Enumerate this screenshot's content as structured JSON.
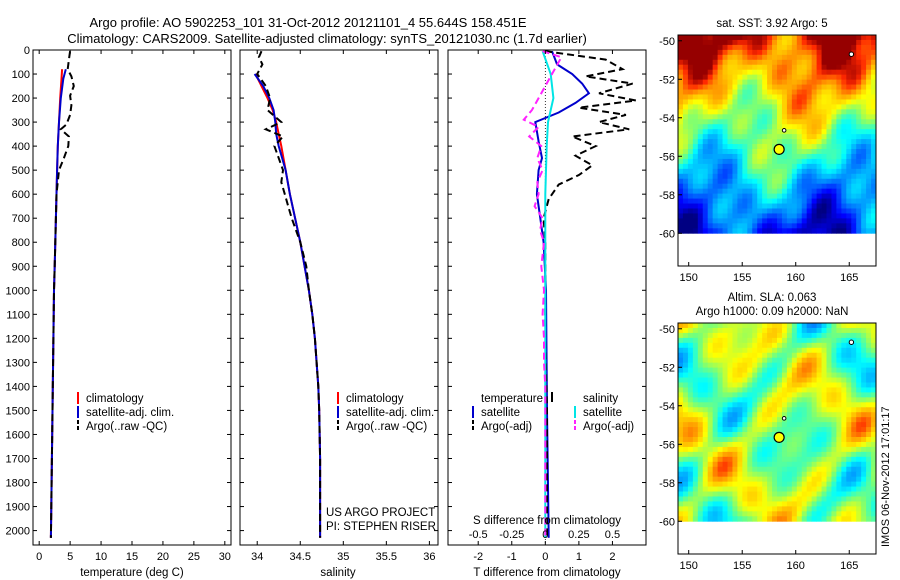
{
  "header": {
    "title_line1": "Argo profile: AO 5902253_101 31-Oct-2012 20121101_4 55.644S 158.451E",
    "title_line2": "Climatology: CARS2009. Satellite-adjusted climatology: synTS_20121030.nc (1.7d earlier)"
  },
  "colors": {
    "climatology": "#ff0000",
    "satellite": "#0000cc",
    "argo": "#000000",
    "temp_sat": "#00e5e5",
    "argo_adj_s": "#ff22ff"
  },
  "watermark": "IMOS 06-Nov-2012 17:01:17",
  "chart_data": [
    {
      "type": "line",
      "xlabel": "temperature (deg C)",
      "ylabel": "",
      "xlim": [
        -1,
        31
      ],
      "ylim": [
        2060,
        0
      ],
      "xticks": [
        0,
        5,
        10,
        15,
        20,
        25,
        30
      ],
      "yticks": [
        0,
        100,
        200,
        300,
        400,
        500,
        600,
        700,
        800,
        900,
        1000,
        1100,
        1200,
        1300,
        1400,
        1500,
        1600,
        1700,
        1800,
        1900,
        2000
      ],
      "legend": [
        "climatology",
        "satellite-adj. clim.",
        "Argo(..raw -QC)"
      ],
      "series": [
        {
          "name": "climatology",
          "color": "#ff0000",
          "dash": "",
          "depth": [
            80,
            120,
            200,
            300,
            400,
            500,
            600,
            700,
            800,
            900,
            1000,
            1200,
            1400,
            1600,
            1800,
            2030
          ],
          "values": [
            3.7,
            3.6,
            3.4,
            3.2,
            3.0,
            2.9,
            2.8,
            2.7,
            2.6,
            2.5,
            2.4,
            2.3,
            2.2,
            2.1,
            2.0,
            1.9
          ]
        },
        {
          "name": "satellite-adj. clim.",
          "color": "#0000cc",
          "dash": "",
          "depth": [
            80,
            120,
            200,
            300,
            400,
            500,
            600,
            700,
            800,
            900,
            1000,
            1200,
            1400,
            1600,
            1800,
            2030
          ],
          "values": [
            4.3,
            3.9,
            3.5,
            3.2,
            3.0,
            2.9,
            2.8,
            2.7,
            2.6,
            2.5,
            2.4,
            2.3,
            2.2,
            2.1,
            2.0,
            1.9
          ]
        },
        {
          "name": "Argo(..raw -QC)",
          "color": "#000000",
          "dash": "7,4",
          "depth": [
            5,
            40,
            80,
            110,
            150,
            190,
            230,
            270,
            310,
            330,
            360,
            400,
            450,
            500,
            600,
            700,
            800,
            900,
            1000,
            1200,
            1400,
            1600,
            1800,
            2030
          ],
          "values": [
            5.0,
            4.8,
            4.6,
            5.2,
            5.6,
            5.0,
            5.2,
            5.0,
            4.4,
            3.5,
            4.8,
            4.7,
            4.0,
            3.2,
            2.8,
            2.7,
            2.6,
            2.5,
            2.4,
            2.3,
            2.2,
            2.1,
            2.0,
            1.9
          ]
        }
      ]
    },
    {
      "type": "line",
      "xlabel": "salinity",
      "ylabel": "",
      "xlim": [
        33.8,
        36.1
      ],
      "ylim": [
        2060,
        0
      ],
      "xticks": [
        34,
        34.5,
        35,
        35.5,
        36
      ],
      "legend": [
        "climatology",
        "satellite-adj. clim.",
        "Argo(..raw -QC)"
      ],
      "annotations": [
        "US ARGO PROJECT",
        "PI: STEPHEN RISER"
      ],
      "series": [
        {
          "name": "climatology",
          "color": "#ff0000",
          "dash": "",
          "depth": [
            100,
            150,
            200,
            250,
            300,
            350,
            400,
            500,
            600,
            700,
            800,
            900,
            1000,
            1100,
            1200,
            1300,
            1400,
            1500,
            1700,
            1900,
            2030
          ],
          "values": [
            33.98,
            34.05,
            34.12,
            34.18,
            34.22,
            34.25,
            34.28,
            34.33,
            34.38,
            34.44,
            34.5,
            34.55,
            34.6,
            34.64,
            34.67,
            34.69,
            34.71,
            34.72,
            34.73,
            34.73,
            34.73
          ]
        },
        {
          "name": "satellite-adj. clim.",
          "color": "#0000cc",
          "dash": "",
          "depth": [
            100,
            150,
            200,
            250,
            300,
            350,
            400,
            500,
            600,
            700,
            800,
            900,
            1000,
            1100,
            1200,
            1300,
            1400,
            1500,
            1700,
            1900,
            2030
          ],
          "values": [
            33.97,
            34.07,
            34.14,
            34.19,
            34.21,
            34.22,
            34.25,
            34.33,
            34.38,
            34.44,
            34.5,
            34.55,
            34.6,
            34.64,
            34.67,
            34.69,
            34.71,
            34.72,
            34.73,
            34.73,
            34.73
          ]
        },
        {
          "name": "Argo(..raw -QC)",
          "color": "#000000",
          "dash": "7,4",
          "depth": [
            5,
            30,
            60,
            100,
            150,
            200,
            250,
            300,
            330,
            360,
            400,
            450,
            500,
            550,
            600,
            650,
            700,
            800,
            900,
            1000,
            1100,
            1200,
            1300,
            1400,
            1500,
            1700,
            1900,
            2030
          ],
          "values": [
            34.05,
            34.02,
            34.06,
            34.0,
            34.1,
            34.15,
            34.12,
            34.28,
            34.1,
            34.3,
            34.2,
            34.25,
            34.3,
            34.28,
            34.32,
            34.36,
            34.4,
            34.5,
            34.57,
            34.6,
            34.64,
            34.67,
            34.69,
            34.71,
            34.72,
            34.73,
            34.73,
            34.73
          ]
        }
      ]
    },
    {
      "type": "line",
      "xlabel": "T difference from climatology",
      "title_bottom": "S difference from climatology",
      "xlim": [
        -2.9,
        3.0
      ],
      "ylim": [
        2060,
        0
      ],
      "xticks": [
        -2,
        -1,
        0,
        1,
        2
      ],
      "xticks_top": [
        -0.5,
        -0.25,
        0,
        0.25,
        0.5
      ],
      "legend_left_title": "temperature",
      "legend_right_title": "salinity",
      "legend": [
        "satellite",
        "Argo(-adj)",
        "satellite",
        "Argo(-adj)"
      ],
      "series": [
        {
          "name": "temperature satellite",
          "color": "#0000cc",
          "dash": "",
          "depth": [
            5,
            60,
            100,
            140,
            180,
            220,
            260,
            300,
            380,
            450,
            500,
            600,
            700,
            800,
            1000,
            1500,
            2030
          ],
          "values": [
            0.2,
            0.35,
            0.8,
            1.1,
            1.3,
            0.9,
            0.4,
            -0.3,
            -0.2,
            -0.1,
            -0.2,
            -0.25,
            -0.15,
            -0.05,
            0.02,
            0.05,
            0.1
          ]
        },
        {
          "name": "temperature Argo(-adj)",
          "color": "#000000",
          "dash": "7,4",
          "depth": [
            5,
            40,
            80,
            110,
            140,
            180,
            210,
            240,
            270,
            300,
            330,
            360,
            400,
            440,
            480,
            520,
            560,
            620,
            700,
            800,
            900,
            1000,
            1200,
            1500,
            2030
          ],
          "values": [
            0.0,
            1.8,
            2.3,
            1.2,
            2.6,
            1.6,
            2.7,
            1.0,
            2.4,
            1.6,
            2.5,
            0.8,
            1.5,
            0.9,
            1.4,
            1.0,
            0.4,
            0.1,
            -0.05,
            0.0,
            0.0,
            0.0,
            0.0,
            0.05,
            0.05
          ]
        },
        {
          "name": "salinity satellite",
          "color": "#00e5e5",
          "dash": "",
          "depth": [
            5,
            100,
            200,
            300,
            400,
            600,
            800,
            1000,
            1500,
            2030
          ],
          "values": [
            -0.02,
            0.04,
            0.06,
            0.02,
            0.01,
            0.0,
            0.0,
            0.0,
            0.0,
            0.0
          ]
        },
        {
          "name": "salinity Argo(-adj)",
          "color": "#ff22ff",
          "dash": "7,4",
          "depth": [
            5,
            30,
            70,
            100,
            150,
            200,
            250,
            290,
            320,
            360,
            400,
            450,
            500,
            550,
            600,
            650,
            700,
            750,
            800,
            900,
            1000,
            1100,
            1200,
            1300,
            1400,
            1600,
            1800,
            2030
          ],
          "values": [
            -0.02,
            0.12,
            0.08,
            0.05,
            0.0,
            -0.05,
            -0.1,
            -0.16,
            -0.05,
            -0.12,
            -0.03,
            -0.06,
            -0.02,
            -0.06,
            -0.05,
            -0.08,
            -0.02,
            -0.04,
            -0.01,
            -0.03,
            -0.01,
            -0.02,
            -0.01,
            -0.01,
            0.0,
            0.0,
            0.0,
            0.0
          ]
        }
      ]
    },
    {
      "type": "heatmap",
      "title": "sat. SST: 3.92 Argo: 5",
      "xlim": [
        149,
        167.5
      ],
      "ylim": [
        -61.7,
        -49.7
      ],
      "xticks": [
        150,
        155,
        160,
        165
      ],
      "yticks": [
        -50,
        -52,
        -54,
        -56,
        -58,
        -60
      ],
      "argo_marker": {
        "lon": 158.45,
        "lat": -55.64
      }
    },
    {
      "type": "heatmap",
      "title_line1": "Altim. SLA: 0.063",
      "title_line2": "Argo h1000: 0.09 h2000: NaN",
      "xlim": [
        149,
        167.5
      ],
      "ylim": [
        -61.7,
        -49.7
      ],
      "xticks": [
        150,
        155,
        160,
        165
      ],
      "yticks": [
        -50,
        -52,
        -54,
        -56,
        -58,
        -60
      ],
      "argo_marker": {
        "lon": 158.45,
        "lat": -55.64
      }
    }
  ]
}
